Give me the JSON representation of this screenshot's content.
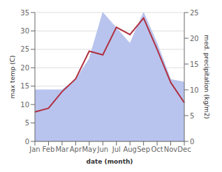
{
  "chart_data": {
    "type": "line",
    "xlabel": "date (month)",
    "ylabel": "max temp (C)",
    "y2label": "med. precipitation (kg/m2)",
    "categories": [
      "Jan",
      "Feb",
      "Mar",
      "Apr",
      "May",
      "Jun",
      "Jul",
      "Aug",
      "Sep",
      "Oct",
      "Nov",
      "Dec"
    ],
    "series": [
      {
        "type": "area",
        "color": "#b8c4ee",
        "axis": "y2",
        "values": [
          10,
          10,
          10,
          12,
          16,
          25,
          22,
          19,
          25,
          19,
          12,
          11.5
        ]
      },
      {
        "type": "line",
        "color": "#b03040",
        "values": [
          8.0,
          9.0,
          13.5,
          17.0,
          24.5,
          23.5,
          31.0,
          29.0,
          33.5,
          25.0,
          16.0,
          10.5
        ]
      }
    ],
    "ylim": [
      0,
      35
    ],
    "yticks": [
      0,
      5,
      10,
      15,
      20,
      25,
      30,
      35
    ],
    "y2lim": [
      0,
      25
    ],
    "y2ticks": [
      0,
      5,
      10,
      15,
      20,
      25
    ],
    "grid": true
  }
}
